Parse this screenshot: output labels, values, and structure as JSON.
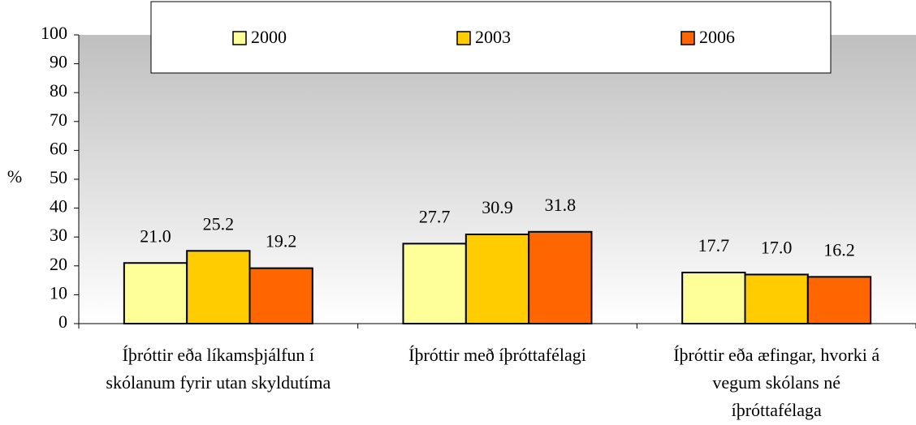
{
  "chart_data": {
    "type": "bar",
    "y_label": "%",
    "categories": [
      [
        "Íþróttir eða líkamsþjálfun í",
        "skólanum fyrir utan skyldutíma"
      ],
      [
        "Íþróttir með íþróttafélagi"
      ],
      [
        "Íþróttir eða æfingar, hvorki á",
        "vegum skólans né",
        "íþróttafélaga"
      ]
    ],
    "series": [
      {
        "name": "2000",
        "color": "#ffff99",
        "values": [
          21.0,
          27.7,
          17.7
        ],
        "value_labels": [
          "21.0",
          "27.7",
          "17.7"
        ]
      },
      {
        "name": "2003",
        "color": "#ffcc00",
        "values": [
          25.2,
          30.9,
          17.0
        ],
        "value_labels": [
          "25.2",
          "30.9",
          "17.0"
        ]
      },
      {
        "name": "2006",
        "color": "#ff6600",
        "values": [
          19.2,
          31.8,
          16.2
        ],
        "value_labels": [
          "19.2",
          "31.8",
          "16.2"
        ]
      }
    ],
    "ylim": [
      0,
      100
    ],
    "yticks": [
      0,
      10,
      20,
      30,
      40,
      50,
      60,
      70,
      80,
      90,
      100
    ],
    "legend": "top"
  }
}
